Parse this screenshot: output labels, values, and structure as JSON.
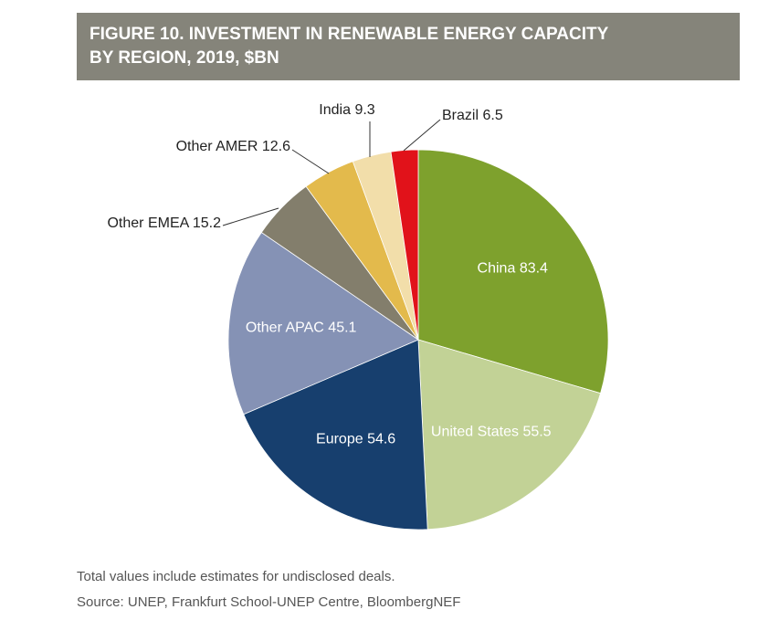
{
  "chart_data": {
    "type": "pie",
    "title": [
      "FIGURE 10. INVESTMENT IN RENEWABLE ENERGY CAPACITY",
      "BY REGION, 2019, $BN"
    ],
    "categories": [
      "China",
      "United States",
      "Europe",
      "Other APAC",
      "Other EMEA",
      "Other AMER",
      "India",
      "Brazil"
    ],
    "values": [
      83.4,
      55.5,
      54.6,
      45.1,
      15.2,
      12.6,
      9.3,
      6.5
    ],
    "colors": [
      "#7ea12d",
      "#c2d296",
      "#173f6e",
      "#8592b5",
      "#837e6c",
      "#e3ba4c",
      "#f2deaa",
      "#e1121a"
    ],
    "notes": [
      "Total values include estimates for undisclosed deals.",
      "Source: UNEP, Frankfurt School-UNEP Centre, BloombergNEF"
    ]
  }
}
